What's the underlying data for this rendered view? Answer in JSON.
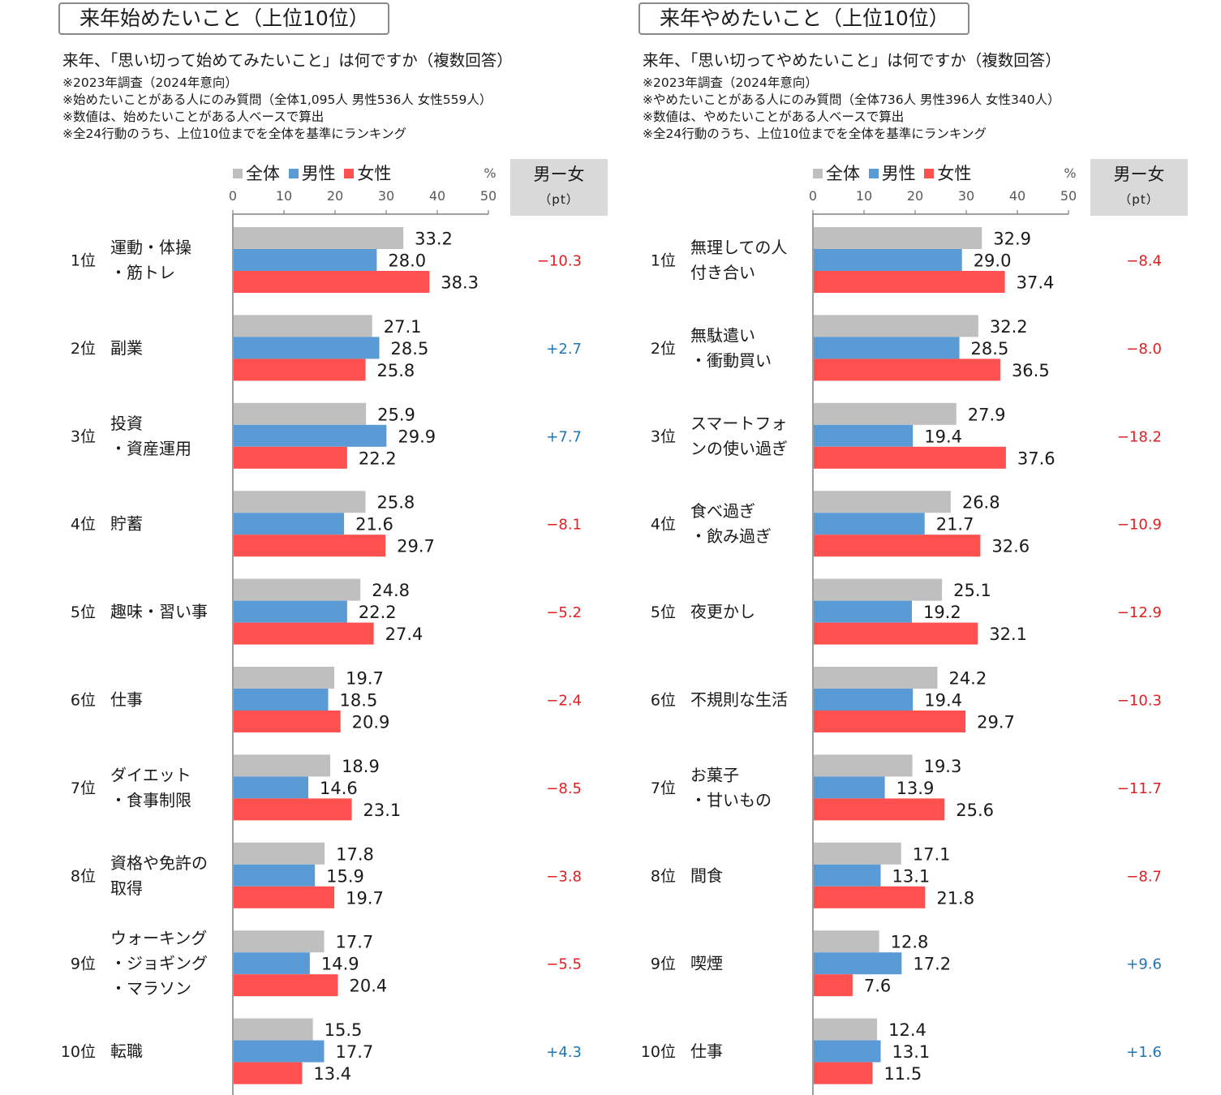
{
  "colors": {
    "all": "#bfbfbf",
    "male": "#5b9bd5",
    "female": "#ff5050",
    "diff_negative": "#e02020",
    "diff_positive": "#1f77b4"
  },
  "chart_data": [
    {
      "type": "bar",
      "title": "来年始めたいこと（上位10位）",
      "subtitle": "来年、「思い切って始めてみたいこと」は何ですか（複数回答）",
      "notes": [
        "※2023年調査（2024年意向）",
        "※始めたいことがある人にのみ質問（全体1,095人 男性536人 女性559人）",
        "※数値は、始めたいことがある人ベースで算出",
        "※全24行動のうち、上位10位までを全体を基準にランキング"
      ],
      "unit": "%",
      "xlim": [
        0,
        50
      ],
      "ticks": [
        0,
        10,
        20,
        30,
        40,
        50
      ],
      "legend": [
        "全体",
        "男性",
        "女性"
      ],
      "diff_header": "男ー女",
      "diff_unit": "（pt）",
      "ranks": [
        "1位",
        "2位",
        "3位",
        "4位",
        "5位",
        "6位",
        "7位",
        "8位",
        "9位",
        "10位"
      ],
      "categories": [
        [
          "運動・体操",
          "・筋トレ"
        ],
        [
          "副業"
        ],
        [
          "投資",
          "・資産運用"
        ],
        [
          "貯蓄"
        ],
        [
          "趣味・習い事"
        ],
        [
          "仕事"
        ],
        [
          "ダイエット",
          "・食事制限"
        ],
        [
          "資格や免許の",
          "取得"
        ],
        [
          "ウォーキング",
          "・ジョギング",
          "・マラソン"
        ],
        [
          "転職"
        ]
      ],
      "series": [
        {
          "name": "全体",
          "values": [
            33.2,
            27.1,
            25.9,
            25.8,
            24.8,
            19.7,
            18.9,
            17.8,
            17.7,
            15.5
          ]
        },
        {
          "name": "男性",
          "values": [
            28.0,
            28.5,
            29.9,
            21.6,
            22.2,
            18.5,
            14.6,
            15.9,
            14.9,
            17.7
          ]
        },
        {
          "name": "女性",
          "values": [
            38.3,
            25.8,
            22.2,
            29.7,
            27.4,
            20.9,
            23.1,
            19.7,
            20.4,
            13.4
          ]
        }
      ],
      "diff": [
        "−10.3",
        "+2.7",
        "+7.7",
        "−8.1",
        "−5.2",
        "−2.4",
        "−8.5",
        "−3.8",
        "−5.5",
        "+4.3"
      ]
    },
    {
      "type": "bar",
      "title": "来年やめたいこと（上位10位）",
      "subtitle": "来年、「思い切ってやめたいこと」は何ですか（複数回答）",
      "notes": [
        "※2023年調査（2024年意向）",
        "※やめたいことがある人にのみ質問（全体736人 男性396人 女性340人）",
        "※数値は、やめたいことがある人ベースで算出",
        "※全24行動のうち、上位10位までを全体を基準にランキング"
      ],
      "unit": "%",
      "xlim": [
        0,
        50
      ],
      "ticks": [
        0,
        10,
        20,
        30,
        40,
        50
      ],
      "legend": [
        "全体",
        "男性",
        "女性"
      ],
      "diff_header": "男ー女",
      "diff_unit": "（pt）",
      "ranks": [
        "1位",
        "2位",
        "3位",
        "4位",
        "5位",
        "6位",
        "7位",
        "8位",
        "9位",
        "10位"
      ],
      "categories": [
        [
          "無理しての人",
          "付き合い"
        ],
        [
          "無駄遣い",
          "・衝動買い"
        ],
        [
          "スマートフォ",
          "ンの使い過ぎ"
        ],
        [
          "食べ過ぎ",
          "・飲み過ぎ"
        ],
        [
          "夜更かし"
        ],
        [
          "不規則な生活"
        ],
        [
          "お菓子",
          "・甘いもの"
        ],
        [
          "間食"
        ],
        [
          "喫煙"
        ],
        [
          "仕事"
        ]
      ],
      "series": [
        {
          "name": "全体",
          "values": [
            32.9,
            32.2,
            27.9,
            26.8,
            25.1,
            24.2,
            19.3,
            17.1,
            12.8,
            12.4
          ]
        },
        {
          "name": "男性",
          "values": [
            29.0,
            28.5,
            19.4,
            21.7,
            19.2,
            19.4,
            13.9,
            13.1,
            17.2,
            13.1
          ]
        },
        {
          "name": "女性",
          "values": [
            37.4,
            36.5,
            37.6,
            32.6,
            32.1,
            29.7,
            25.6,
            21.8,
            7.6,
            11.5
          ]
        }
      ],
      "diff": [
        "−8.4",
        "−8.0",
        "−18.2",
        "−10.9",
        "−12.9",
        "−10.3",
        "−11.7",
        "−8.7",
        "+9.6",
        "+1.6"
      ]
    }
  ]
}
